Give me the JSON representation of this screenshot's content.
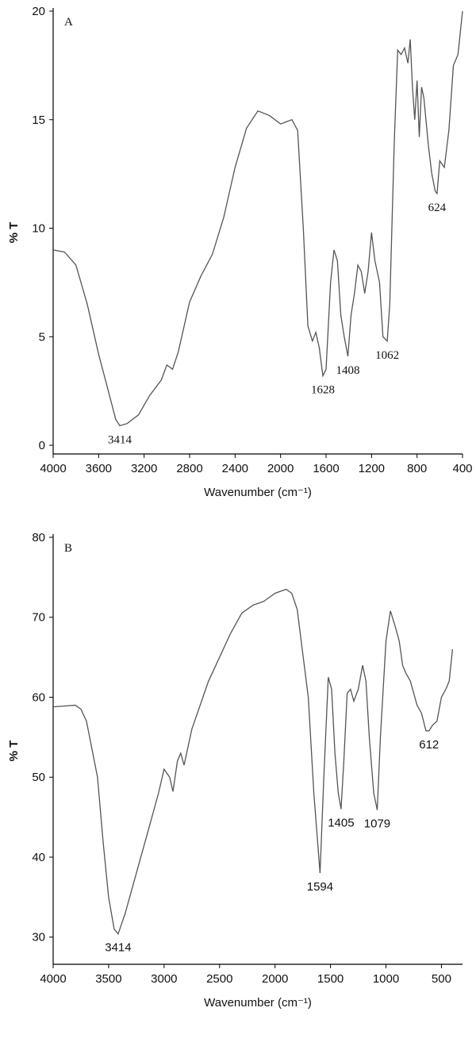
{
  "chart_data": [
    {
      "type": "line",
      "panel_label": "A",
      "xlabel": "Wavenumber (cm⁻¹)",
      "ylabel": "% T",
      "color": "#555555",
      "xlim": [
        4000,
        400
      ],
      "xticks": [
        4000,
        3600,
        3200,
        2800,
        2400,
        2000,
        1600,
        1200,
        800,
        400
      ],
      "ylim": [
        -0.4,
        20
      ],
      "yticks": [
        0,
        5,
        10,
        15,
        20
      ],
      "x": [
        4000,
        3900,
        3800,
        3700,
        3600,
        3500,
        3450,
        3414,
        3350,
        3250,
        3150,
        3050,
        3000,
        2950,
        2900,
        2800,
        2700,
        2600,
        2500,
        2400,
        2300,
        2200,
        2100,
        2000,
        1950,
        1900,
        1850,
        1800,
        1760,
        1720,
        1690,
        1660,
        1628,
        1600,
        1560,
        1530,
        1500,
        1470,
        1440,
        1408,
        1380,
        1350,
        1320,
        1290,
        1260,
        1230,
        1200,
        1170,
        1130,
        1100,
        1062,
        1040,
        1000,
        970,
        940,
        910,
        880,
        860,
        840,
        820,
        800,
        780,
        760,
        740,
        700,
        670,
        640,
        624,
        600,
        560,
        520,
        480,
        440,
        400
      ],
      "values": [
        9.0,
        8.9,
        8.3,
        6.5,
        4.2,
        2.2,
        1.2,
        0.9,
        1.0,
        1.4,
        2.3,
        3.0,
        3.7,
        3.5,
        4.3,
        6.6,
        7.8,
        8.8,
        10.5,
        12.8,
        14.6,
        15.4,
        15.2,
        14.8,
        14.9,
        15.0,
        14.5,
        10,
        5.5,
        4.8,
        5.2,
        4.5,
        3.2,
        3.5,
        7.5,
        9.0,
        8.5,
        6.0,
        5.0,
        4.1,
        6.0,
        7.0,
        8.3,
        8.0,
        7.0,
        8.0,
        9.8,
        8.5,
        7.5,
        5.0,
        4.8,
        6.5,
        14,
        18.2,
        18.0,
        18.3,
        17.6,
        18.7,
        16.5,
        15.0,
        16.8,
        14.2,
        16.5,
        16.0,
        13.8,
        12.5,
        11.7,
        11.6,
        13.1,
        12.8,
        14.5,
        17.5,
        18.0,
        20.0
      ],
      "annotations": [
        {
          "label": "3414",
          "x": 3414,
          "y": 0.9
        },
        {
          "label": "1628",
          "x": 1628,
          "y": 3.2
        },
        {
          "label": "1408",
          "x": 1408,
          "y": 4.1
        },
        {
          "label": "1062",
          "x": 1062,
          "y": 4.8
        },
        {
          "label": "624",
          "x": 624,
          "y": 11.6
        }
      ]
    },
    {
      "type": "line",
      "panel_label": "B",
      "xlabel": "Wavenumber (cm⁻¹)",
      "ylabel": "% T",
      "color": "#555555",
      "xlim": [
        4000,
        310
      ],
      "xticks": [
        4000,
        3500,
        3000,
        2500,
        2000,
        1500,
        1000,
        500
      ],
      "ylim": [
        26.6,
        80
      ],
      "yticks": [
        30,
        40,
        50,
        60,
        70,
        80
      ],
      "x": [
        4000,
        3900,
        3800,
        3750,
        3700,
        3600,
        3550,
        3500,
        3450,
        3414,
        3350,
        3250,
        3150,
        3050,
        3000,
        2950,
        2920,
        2880,
        2850,
        2820,
        2750,
        2600,
        2400,
        2300,
        2200,
        2100,
        2000,
        1900,
        1850,
        1800,
        1700,
        1650,
        1594,
        1560,
        1520,
        1490,
        1460,
        1430,
        1405,
        1380,
        1350,
        1320,
        1290,
        1250,
        1210,
        1180,
        1150,
        1110,
        1079,
        1050,
        1000,
        960,
        920,
        880,
        850,
        820,
        780,
        720,
        680,
        640,
        612,
        580,
        540,
        500,
        460,
        430,
        400
      ],
      "values": [
        58.8,
        58.9,
        59.0,
        58.5,
        57,
        50,
        42,
        35,
        31,
        30.4,
        33,
        38,
        43,
        48,
        51,
        50,
        48.2,
        52,
        53,
        51.5,
        56,
        62,
        68,
        70.5,
        71.5,
        72,
        73,
        73.5,
        73,
        71,
        60,
        48,
        38,
        50,
        62.5,
        61,
        53,
        48,
        46,
        52,
        60.5,
        61,
        59.5,
        61,
        64,
        62,
        55,
        48,
        45.9,
        55,
        67,
        70.8,
        69,
        67,
        64,
        63,
        62,
        59,
        58,
        55.8,
        55.8,
        56.5,
        57,
        60,
        61,
        62,
        66
      ],
      "annotations": [
        {
          "label": "3414",
          "x": 3414,
          "y": 30.4
        },
        {
          "label": "1594",
          "x": 1594,
          "y": 38
        },
        {
          "label": "1405",
          "x": 1405,
          "y": 46
        },
        {
          "label": "1079",
          "x": 1079,
          "y": 45.9
        },
        {
          "label": "612",
          "x": 612,
          "y": 55.8
        }
      ]
    }
  ]
}
